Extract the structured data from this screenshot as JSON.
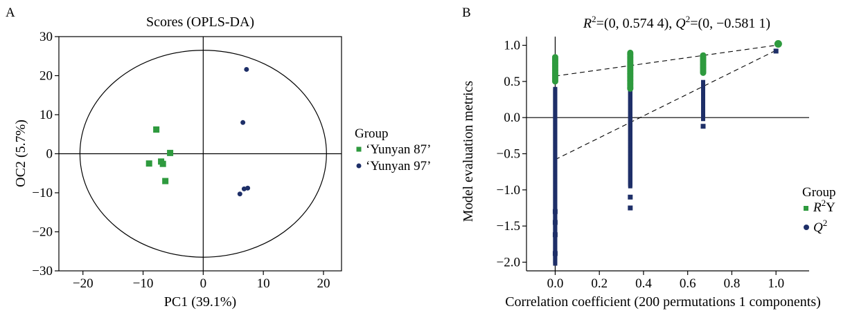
{
  "chart_data": [
    {
      "panel_label": "A",
      "type": "scatter",
      "title": "Scores (OPLS-DA)",
      "xlabel": "PC1 (39.1%)",
      "ylabel": "OC2 (5.7%)",
      "xlim": [
        -24,
        23
      ],
      "ylim": [
        -30,
        30
      ],
      "xticks": [
        -20,
        -10,
        0,
        10,
        20
      ],
      "yticks": [
        -30,
        -20,
        -10,
        0,
        10,
        20,
        30
      ],
      "xtick_labels": [
        "−20",
        "−10",
        "0",
        "10",
        "20"
      ],
      "ytick_labels": [
        "−30",
        "−20",
        "−10",
        "0",
        "10",
        "20",
        "30"
      ],
      "grid": false,
      "reference_lines": {
        "x": 0,
        "y": 0
      },
      "ellipse": {
        "cx": 0,
        "cy": 0,
        "rx": 20.5,
        "ry": 26.5
      },
      "legend": {
        "title": "Group",
        "placement": "right"
      },
      "series": [
        {
          "name": "‘Yunyan 87’",
          "color": "#2e9a3e",
          "marker": "square",
          "points": [
            [
              -7.8,
              6.2
            ],
            [
              -5.5,
              0.2
            ],
            [
              -9.0,
              -2.5
            ],
            [
              -7.0,
              -2.0
            ],
            [
              -6.7,
              -2.6
            ],
            [
              -6.3,
              -7.0
            ]
          ]
        },
        {
          "name": "‘Yunyan 97’",
          "color": "#1e2f68",
          "marker": "circle",
          "points": [
            [
              7.2,
              21.6
            ],
            [
              6.6,
              8.0
            ],
            [
              6.8,
              -9.0
            ],
            [
              7.4,
              -8.8
            ],
            [
              6.1,
              -10.3
            ]
          ]
        }
      ]
    },
    {
      "panel_label": "B",
      "type": "scatter",
      "title_parts": {
        "r_sym": "R",
        "sup": "2",
        "r_val": "=(0, 0.574 4), ",
        "q_sym": "Q",
        "q_val": "=(0, −0.581 1)"
      },
      "xlabel": "Correlation coefficient (200 permutations 1 components)",
      "ylabel": "Model evaluation metrics",
      "xlim": [
        -0.13,
        1.15
      ],
      "ylim": [
        -2.12,
        1.12
      ],
      "xticks": [
        0.0,
        0.2,
        0.4,
        0.6,
        0.8,
        1.0
      ],
      "yticks": [
        -2.0,
        -1.5,
        -1.0,
        -0.5,
        0.0,
        0.5,
        1.0
      ],
      "xtick_labels": [
        "0.0",
        "0.2",
        "0.4",
        "0.6",
        "0.8",
        "1.0"
      ],
      "ytick_labels": [
        "−2.0",
        "−1.5",
        "−1.0",
        "−0.5",
        "0.0",
        "0.5",
        "1.0"
      ],
      "grid": false,
      "reference_lines": {
        "x": 0,
        "y": 0
      },
      "regression_lines": [
        {
          "name": "R2Y fit",
          "from": [
            0,
            0.5744
          ],
          "to": [
            1.0,
            1.0
          ]
        },
        {
          "name": "Q2 fit",
          "from": [
            0,
            -0.5811
          ],
          "to": [
            1.0,
            0.93
          ]
        }
      ],
      "legend": {
        "title": "Group",
        "placement": "bottom-right",
        "r_item": "R",
        "r_sup": "2",
        "r_suffix": "Y",
        "q_item": "Q",
        "q_sup": "2"
      },
      "series": [
        {
          "name": "R2Y",
          "color": "#2e9a3e",
          "marker": "circle",
          "column_ranges": [
            [
              0.0,
              0.5,
              0.84
            ],
            [
              0.34,
              0.4,
              0.9
            ],
            [
              0.67,
              0.62,
              0.86
            ]
          ],
          "points": [
            [
              1.01,
              1.02
            ]
          ]
        },
        {
          "name": "Q2",
          "color": "#1e2f68",
          "marker": "square",
          "column_ranges": [
            [
              0.0,
              -2.02,
              0.4
            ],
            [
              0.34,
              -0.95,
              0.42
            ],
            [
              0.67,
              -0.02,
              0.5
            ]
          ],
          "points": [
            [
              0.0,
              -1.88
            ],
            [
              0.0,
              -1.62
            ],
            [
              0.0,
              -1.45
            ],
            [
              0.0,
              -1.3
            ],
            [
              0.34,
              -1.25
            ],
            [
              0.34,
              -1.1
            ],
            [
              0.67,
              -0.12
            ],
            [
              1.0,
              0.92
            ]
          ]
        }
      ]
    }
  ]
}
